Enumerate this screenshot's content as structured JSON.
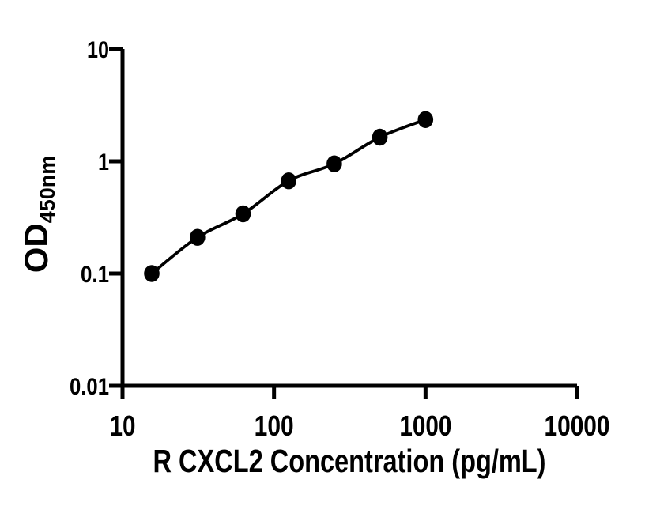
{
  "figure": {
    "background": "#ffffff",
    "ink_color": "#000000"
  },
  "chart_data": {
    "type": "scatter",
    "subtype": "line-scatter-standard-curve",
    "title": "",
    "xlabel": "R CXCL2 Concentration (pg/mL)",
    "ylabel": "OD",
    "ylabel_subscript": "450nm",
    "x_scale": "log10",
    "y_scale": "log10",
    "xlim": [
      10,
      10000
    ],
    "ylim": [
      0.01,
      10
    ],
    "grid": false,
    "legend": null,
    "x_ticks": [
      {
        "value": 10,
        "label": "10"
      },
      {
        "value": 100,
        "label": "100"
      },
      {
        "value": 1000,
        "label": "1000"
      },
      {
        "value": 10000,
        "label": "10000"
      }
    ],
    "y_ticks": [
      {
        "value": 10,
        "label": "10"
      },
      {
        "value": 1,
        "label": "1"
      },
      {
        "value": 0.1,
        "label": "0.1"
      },
      {
        "value": 0.01,
        "label": "0.01"
      }
    ],
    "series": [
      {
        "marker": "filled-circle",
        "marker_color": "#000000",
        "line_color": "#000000",
        "line_style": "smooth",
        "points": [
          {
            "x": 15.6,
            "y": 0.1
          },
          {
            "x": 31.25,
            "y": 0.21
          },
          {
            "x": 62.5,
            "y": 0.34
          },
          {
            "x": 125,
            "y": 0.67
          },
          {
            "x": 250,
            "y": 0.95
          },
          {
            "x": 500,
            "y": 1.64
          },
          {
            "x": 1000,
            "y": 2.35
          }
        ]
      }
    ]
  }
}
